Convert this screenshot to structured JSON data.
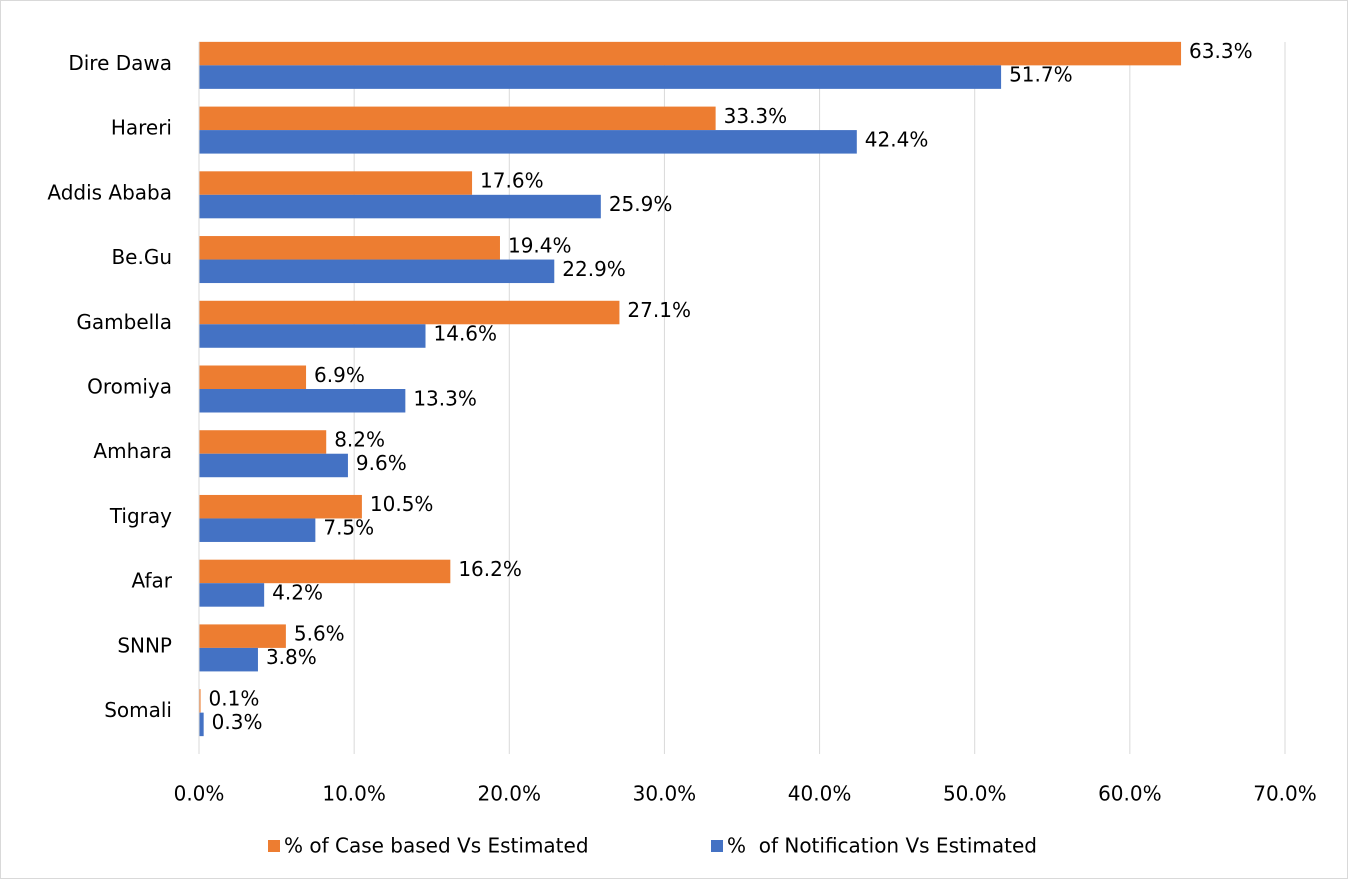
{
  "chart_data": {
    "type": "hbar",
    "categories": [
      "Dire Dawa",
      "Hareri",
      "Addis Ababa",
      "Be.Gu",
      "Gambella",
      "Oromiya",
      "Amhara",
      "Tigray",
      "Afar",
      "SNNP",
      "Somali"
    ],
    "series": [
      {
        "name": "% of Case based Vs Estimated",
        "color": "#ed7d31",
        "values": [
          63.3,
          33.3,
          17.6,
          19.4,
          27.1,
          6.9,
          8.2,
          10.5,
          16.2,
          5.6,
          0.1
        ],
        "value_labels": [
          "63.3%",
          "33.3%",
          "17.6%",
          "19.4%",
          "27.1%",
          "6.9%",
          "8.2%",
          "10.5%",
          "16.2%",
          "5.6%",
          "0.1%"
        ]
      },
      {
        "name": "%  of Notification Vs Estimated",
        "color": "#4472c4",
        "values": [
          51.7,
          42.4,
          25.9,
          22.9,
          14.6,
          13.3,
          9.6,
          7.5,
          4.2,
          3.8,
          0.3
        ],
        "value_labels": [
          "51.7%",
          "42.4%",
          "25.9%",
          "22.9%",
          "14.6%",
          "13.3%",
          "9.6%",
          "7.5%",
          "4.2%",
          "3.8%",
          "0.3%"
        ]
      }
    ],
    "xlim": [
      0,
      70
    ],
    "xticks": [
      {
        "value": 0,
        "label": "0.0%"
      },
      {
        "value": 10,
        "label": "10.0%"
      },
      {
        "value": 20,
        "label": "20.0%"
      },
      {
        "value": 30,
        "label": "30.0%"
      },
      {
        "value": 40,
        "label": "40.0%"
      },
      {
        "value": 50,
        "label": "50.0%"
      },
      {
        "value": 60,
        "label": "60.0%"
      },
      {
        "value": 70,
        "label": "70.0%"
      }
    ],
    "grid": true,
    "legend": "bottom"
  }
}
